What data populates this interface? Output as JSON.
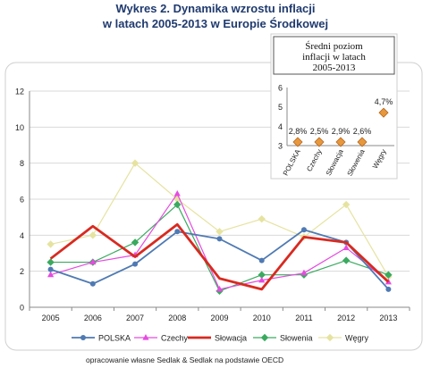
{
  "page": {
    "title_line1": "Wykres 2. Dynamika wzrostu inflacji",
    "title_line2": "w latach 2005-2013 w Europie Środkowej",
    "footer": "opracowanie własne Sedlak & Sedlak na podstawie OECD"
  },
  "chart_data": [
    {
      "type": "line",
      "x": [
        "2005",
        "2006",
        "2007",
        "2008",
        "2009",
        "2010",
        "2011",
        "2012",
        "2013"
      ],
      "ylim": [
        0,
        12
      ],
      "yticks": [
        "0",
        "2",
        "4",
        "6",
        "8",
        "10",
        "12"
      ],
      "grid": true,
      "legend": "bottom",
      "series": [
        {
          "name": "POLSKA",
          "color": "#4f7ab3",
          "marker": "circle",
          "width": 1.8,
          "values": [
            2.1,
            1.3,
            2.4,
            4.2,
            3.8,
            2.6,
            4.3,
            3.6,
            1.0
          ]
        },
        {
          "name": "Czechy",
          "color": "#e64be0",
          "marker": "triangle",
          "width": 1.2,
          "values": [
            1.8,
            2.5,
            2.9,
            6.3,
            1.0,
            1.5,
            1.9,
            3.3,
            1.4
          ]
        },
        {
          "name": "Słowacja",
          "color": "#d82a20",
          "marker": "none",
          "width": 2.8,
          "values": [
            2.7,
            4.5,
            2.8,
            4.6,
            1.6,
            1.0,
            3.9,
            3.6,
            1.4
          ]
        },
        {
          "name": "Słowenia",
          "color": "#3aaa5f",
          "marker": "diamond",
          "width": 1.2,
          "values": [
            2.5,
            2.5,
            3.6,
            5.7,
            0.9,
            1.8,
            1.8,
            2.6,
            1.8
          ]
        },
        {
          "name": "Węgry",
          "color": "#e6e3a0",
          "marker": "diamond",
          "width": 1.2,
          "values": [
            3.5,
            4.0,
            8.0,
            6.0,
            4.2,
            4.9,
            3.9,
            5.7,
            1.7
          ]
        }
      ]
    },
    {
      "type": "scatter",
      "title_lines": [
        "Średni poziom",
        "inflacji w latach",
        "2005-2013"
      ],
      "categories": [
        "POLSKA",
        "Czechy",
        "Słowacja",
        "Słowenia",
        "Węgry"
      ],
      "values": [
        2.8,
        2.5,
        2.9,
        2.6,
        4.7
      ],
      "labels": [
        "2,8%",
        "2,5%",
        "2,9%",
        "2,6%",
        "4,7%"
      ],
      "ylim": [
        3,
        6
      ],
      "yticks": [
        "3",
        "4",
        "5",
        "6"
      ],
      "marker_color": "#e8983c"
    }
  ]
}
